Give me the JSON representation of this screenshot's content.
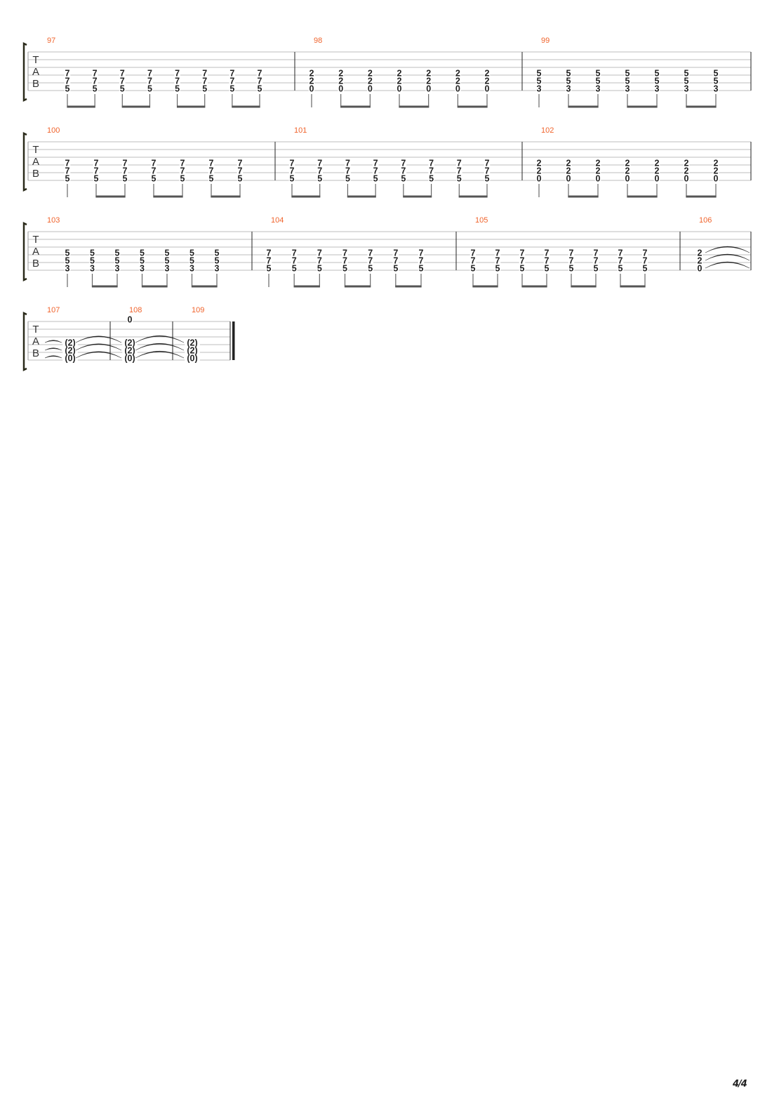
{
  "page_number": "4/4",
  "clef_label": [
    "T",
    "A",
    "B"
  ],
  "colors": {
    "measure_number": "#f0642d",
    "staff_line": "#bdbdbd",
    "barline": "#222222",
    "note": "#222222",
    "stem": "#666666"
  },
  "tuning_strings": 6,
  "systems": [
    {
      "measures": [
        {
          "number": "97",
          "chord": [
            "",
            "",
            "",
            "7",
            "7",
            "5"
          ],
          "rhythm": [
            "8",
            "8",
            "8",
            "8",
            "8",
            "8",
            "8",
            "8"
          ]
        },
        {
          "number": "98",
          "chord": [
            "",
            "",
            "",
            "2",
            "2",
            "0"
          ],
          "rhythm": [
            "4",
            "8",
            "8",
            "8",
            "8",
            "8",
            "8"
          ]
        },
        {
          "number": "99",
          "chord": [
            "",
            "",
            "",
            "5",
            "5",
            "3"
          ],
          "rhythm": [
            "4",
            "8",
            "8",
            "8",
            "8",
            "8",
            "8"
          ]
        }
      ]
    },
    {
      "measures": [
        {
          "number": "100",
          "chord": [
            "",
            "",
            "",
            "7",
            "7",
            "5"
          ],
          "rhythm": [
            "4",
            "8",
            "8",
            "8",
            "8",
            "8",
            "8"
          ]
        },
        {
          "number": "101",
          "chord": [
            "",
            "",
            "",
            "7",
            "7",
            "5"
          ],
          "rhythm": [
            "8",
            "8",
            "8",
            "8",
            "8",
            "8",
            "8",
            "8"
          ]
        },
        {
          "number": "102",
          "chord": [
            "",
            "",
            "",
            "2",
            "2",
            "0"
          ],
          "rhythm": [
            "4",
            "8",
            "8",
            "8",
            "8",
            "8",
            "8"
          ]
        }
      ]
    },
    {
      "measures": [
        {
          "number": "103",
          "chord": [
            "",
            "",
            "",
            "5",
            "5",
            "3"
          ],
          "rhythm": [
            "4",
            "8",
            "8",
            "8",
            "8",
            "8",
            "8"
          ]
        },
        {
          "number": "104",
          "chord": [
            "",
            "",
            "",
            "7",
            "7",
            "5"
          ],
          "rhythm": [
            "4",
            "8",
            "8",
            "8",
            "8",
            "8",
            "8"
          ]
        },
        {
          "number": "105",
          "chord": [
            "",
            "",
            "",
            "7",
            "7",
            "5"
          ],
          "rhythm": [
            "8",
            "8",
            "8",
            "8",
            "8",
            "8",
            "8",
            "8"
          ]
        },
        {
          "number": "106",
          "chord": [
            "",
            "",
            "",
            "2",
            "2",
            "0"
          ],
          "rhythm": [
            "1"
          ],
          "tie": "start"
        }
      ]
    },
    {
      "measures": [
        {
          "number": "107",
          "chord": [
            "",
            "",
            "",
            "(2)",
            "(2)",
            "(0)"
          ],
          "rhythm": [
            "1"
          ],
          "tie": "continue"
        },
        {
          "number": "108",
          "chord": [
            "0",
            "",
            "",
            "(2)",
            "(2)",
            "(0)"
          ],
          "rhythm": [
            "1"
          ],
          "tie": "continue"
        },
        {
          "number": "109",
          "chord": [
            "",
            "",
            "",
            "(2)",
            "(2)",
            "(0)"
          ],
          "rhythm": [
            "1"
          ],
          "tie": "end",
          "final_barline": true
        }
      ]
    }
  ]
}
